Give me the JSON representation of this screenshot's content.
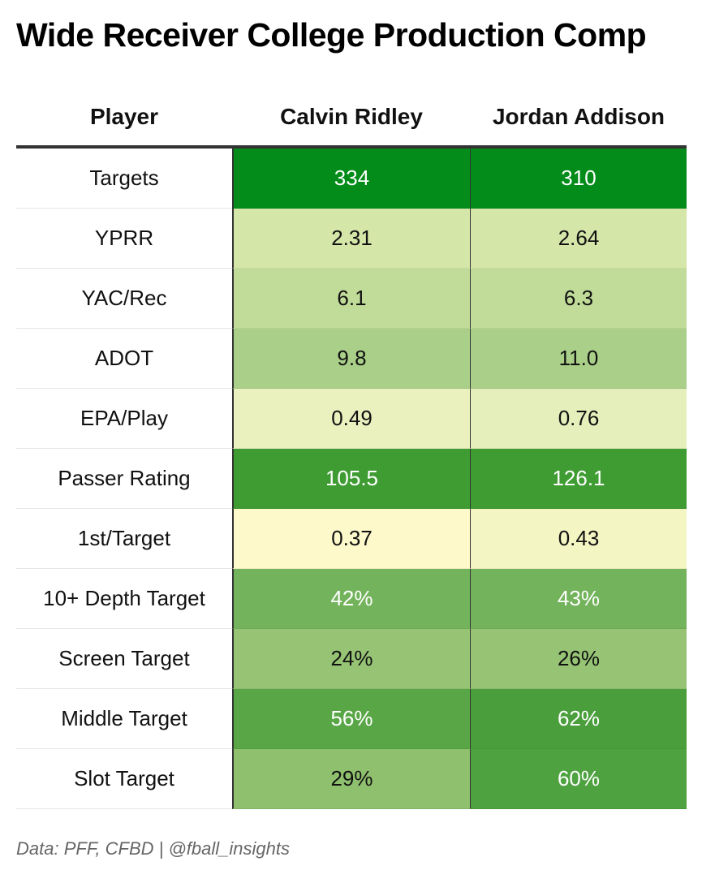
{
  "title": "Wide Receiver College Production Comp",
  "source": "Data: PFF, CFBD | @fball_insights",
  "chart_data": {
    "type": "table",
    "columns": [
      "Player",
      "Calvin Ridley",
      "Jordan Addison"
    ],
    "rows": [
      {
        "metric": "Targets",
        "values": [
          "334",
          "310"
        ],
        "colors": [
          "#038c1a",
          "#038c1a"
        ],
        "text_colors": [
          "#ffffff",
          "#ffffff"
        ]
      },
      {
        "metric": "YPRR",
        "values": [
          "2.31",
          "2.64"
        ],
        "colors": [
          "#d4e6a8",
          "#d4e6a8"
        ],
        "text_colors": [
          "#111111",
          "#111111"
        ]
      },
      {
        "metric": "YAC/Rec",
        "values": [
          "6.1",
          "6.3"
        ],
        "colors": [
          "#c0dc98",
          "#c0dc98"
        ],
        "text_colors": [
          "#111111",
          "#111111"
        ]
      },
      {
        "metric": "ADOT",
        "values": [
          "9.8",
          "11.0"
        ],
        "colors": [
          "#a9cf88",
          "#a9cf88"
        ],
        "text_colors": [
          "#111111",
          "#111111"
        ]
      },
      {
        "metric": "EPA/Play",
        "values": [
          "0.49",
          "0.76"
        ],
        "colors": [
          "#eaf1bf",
          "#e5efbb"
        ],
        "text_colors": [
          "#111111",
          "#111111"
        ]
      },
      {
        "metric": "Passer Rating",
        "values": [
          "105.5",
          "126.1"
        ],
        "colors": [
          "#3f9c33",
          "#3f9c33"
        ],
        "text_colors": [
          "#ffffff",
          "#ffffff"
        ]
      },
      {
        "metric": "1st/Target",
        "values": [
          "0.37",
          "0.43"
        ],
        "colors": [
          "#fdf9cb",
          "#f3f5c2"
        ],
        "text_colors": [
          "#111111",
          "#111111"
        ]
      },
      {
        "metric": "10+ Depth Target",
        "values": [
          "42%",
          "43%"
        ],
        "colors": [
          "#73b35c",
          "#73b35c"
        ],
        "text_colors": [
          "#ffffff",
          "#ffffff"
        ]
      },
      {
        "metric": "Screen Target",
        "values": [
          "24%",
          "26%"
        ],
        "colors": [
          "#96c474",
          "#96c474"
        ],
        "text_colors": [
          "#111111",
          "#111111"
        ]
      },
      {
        "metric": "Middle Target",
        "values": [
          "56%",
          "62%"
        ],
        "colors": [
          "#59a646",
          "#4a9f3c"
        ],
        "text_colors": [
          "#ffffff",
          "#ffffff"
        ]
      },
      {
        "metric": "Slot Target",
        "values": [
          "29%",
          "60%"
        ],
        "colors": [
          "#8fc06e",
          "#4fa240"
        ],
        "text_colors": [
          "#111111",
          "#ffffff"
        ]
      }
    ]
  }
}
